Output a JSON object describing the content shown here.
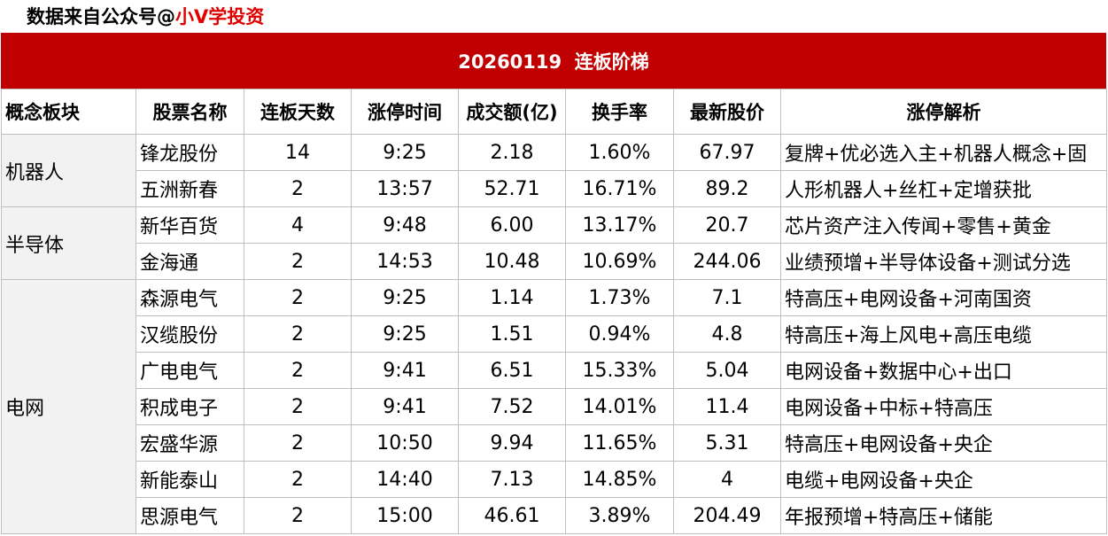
{
  "source": {
    "prefix": "数据来自公众号@",
    "brand": "小V学投资"
  },
  "title": "20260119  连板阶梯",
  "columns": [
    "概念板块",
    "股票名称",
    "连板天数",
    "涨停时间",
    "成交额(亿)",
    "换手率",
    "最新股价",
    "涨停解析"
  ],
  "sectors": [
    {
      "name": "机器人",
      "stocks": [
        {
          "name": "锋龙股份",
          "days": "14",
          "time": "9:25",
          "amount": "2.18",
          "turnover": "1.60%",
          "price": "67.97",
          "reason": "复牌+优必选入主+机器人概念+固"
        },
        {
          "name": "五洲新春",
          "days": "2",
          "time": "13:57",
          "amount": "52.71",
          "turnover": "16.71%",
          "price": "89.2",
          "reason": "人形机器人+丝杠+定增获批"
        }
      ]
    },
    {
      "name": "半导体",
      "stocks": [
        {
          "name": "新华百货",
          "days": "4",
          "time": "9:48",
          "amount": "6.00",
          "turnover": "13.17%",
          "price": "20.7",
          "reason": "芯片资产注入传闻+零售+黄金"
        },
        {
          "name": "金海通",
          "days": "2",
          "time": "14:53",
          "amount": "10.48",
          "turnover": "10.69%",
          "price": "244.06",
          "reason": "业绩预增+半导体设备+测试分选"
        }
      ]
    },
    {
      "name": "电网",
      "stocks": [
        {
          "name": "森源电气",
          "days": "2",
          "time": "9:25",
          "amount": "1.14",
          "turnover": "1.73%",
          "price": "7.1",
          "reason": "特高压+电网设备+河南国资"
        },
        {
          "name": "汉缆股份",
          "days": "2",
          "time": "9:25",
          "amount": "1.51",
          "turnover": "0.94%",
          "price": "4.8",
          "reason": "特高压+海上风电+高压电缆"
        },
        {
          "name": "广电电气",
          "days": "2",
          "time": "9:41",
          "amount": "6.51",
          "turnover": "15.33%",
          "price": "5.04",
          "reason": "电网设备+数据中心+出口"
        },
        {
          "name": "积成电子",
          "days": "2",
          "time": "9:41",
          "amount": "7.52",
          "turnover": "14.01%",
          "price": "11.4",
          "reason": "电网设备+中标+特高压"
        },
        {
          "name": "宏盛华源",
          "days": "2",
          "time": "10:50",
          "amount": "9.94",
          "turnover": "11.65%",
          "price": "5.31",
          "reason": "特高压+电网设备+央企"
        },
        {
          "name": "新能泰山",
          "days": "2",
          "time": "14:40",
          "amount": "7.13",
          "turnover": "14.85%",
          "price": "4",
          "reason": "电缆+电网设备+央企"
        },
        {
          "name": "思源电气",
          "days": "2",
          "time": "15:00",
          "amount": "46.61",
          "turnover": "3.89%",
          "price": "204.49",
          "reason": "年报预增+特高压+储能"
        }
      ]
    }
  ]
}
